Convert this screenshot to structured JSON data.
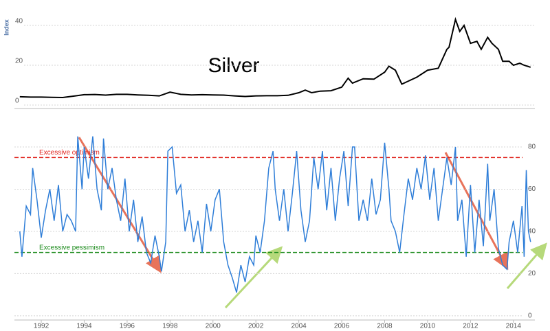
{
  "chart_data": [
    {
      "type": "line",
      "title": "Silver",
      "y_label": "Index",
      "x": [
        1991.0,
        1991.5,
        1992.0,
        1992.5,
        1993.0,
        1993.5,
        1994.0,
        1994.5,
        1995.0,
        1995.5,
        1996.0,
        1996.5,
        1997.0,
        1997.5,
        1998.0,
        1998.5,
        1999.0,
        1999.5,
        2000.0,
        2000.5,
        2001.0,
        2001.5,
        2002.0,
        2002.5,
        2003.0,
        2003.5,
        2004.0,
        2004.3,
        2004.6,
        2005.0,
        2005.5,
        2006.0,
        2006.3,
        2006.5,
        2007.0,
        2007.5,
        2008.0,
        2008.2,
        2008.5,
        2008.8,
        2009.0,
        2009.5,
        2010.0,
        2010.5,
        2010.9,
        2011.0,
        2011.3,
        2011.5,
        2011.7,
        2012.0,
        2012.3,
        2012.5,
        2012.8,
        2013.0,
        2013.3,
        2013.5,
        2013.8,
        2014.0,
        2014.3,
        2014.5,
        2014.8
      ],
      "series": [
        {
          "color": "#000000",
          "values": [
            4.2,
            4.0,
            4.0,
            3.9,
            3.8,
            4.5,
            5.2,
            5.3,
            5.0,
            5.4,
            5.4,
            5.1,
            4.9,
            4.6,
            6.5,
            5.4,
            5.1,
            5.2,
            5.1,
            5.0,
            4.6,
            4.3,
            4.6,
            4.7,
            4.7,
            4.9,
            6.2,
            7.5,
            6.2,
            7.0,
            7.2,
            9.0,
            13.5,
            11,
            13.2,
            13.0,
            16.5,
            19.5,
            17.5,
            10.5,
            11.5,
            14,
            17.5,
            18.5,
            28,
            29,
            43,
            37,
            40,
            31,
            32,
            28,
            34,
            31,
            28,
            22,
            22,
            20,
            21,
            20,
            19
          ]
        }
      ],
      "xlim": [
        1990.75,
        2015
      ],
      "ylim": [
        0,
        50
      ],
      "yticks": [
        0,
        20,
        40
      ],
      "grid": true
    },
    {
      "type": "line",
      "x": [
        1991.0,
        1991.1,
        1991.3,
        1991.5,
        1991.6,
        1991.8,
        1992.0,
        1992.2,
        1992.4,
        1992.6,
        1992.8,
        1993.0,
        1993.2,
        1993.4,
        1993.6,
        1993.7,
        1993.9,
        1994.0,
        1994.2,
        1994.4,
        1994.6,
        1994.8,
        1994.9,
        1995.1,
        1995.3,
        1995.5,
        1995.7,
        1995.9,
        1996.1,
        1996.3,
        1996.5,
        1996.7,
        1996.9,
        1997.1,
        1997.3,
        1997.5,
        1997.6,
        1997.8,
        1997.9,
        1998.1,
        1998.3,
        1998.5,
        1998.7,
        1998.9,
        1999.1,
        1999.3,
        1999.5,
        1999.7,
        1999.9,
        2000.1,
        2000.3,
        2000.5,
        2000.7,
        2000.9,
        2001.1,
        2001.3,
        2001.5,
        2001.7,
        2001.9,
        2002.0,
        2002.2,
        2002.4,
        2002.6,
        2002.8,
        2002.9,
        2003.1,
        2003.3,
        2003.5,
        2003.7,
        2003.9,
        2004.1,
        2004.3,
        2004.5,
        2004.7,
        2004.9,
        2005.1,
        2005.3,
        2005.5,
        2005.7,
        2005.9,
        2006.1,
        2006.3,
        2006.5,
        2006.6,
        2006.8,
        2007.0,
        2007.2,
        2007.4,
        2007.6,
        2007.8,
        2008.0,
        2008.2,
        2008.3,
        2008.5,
        2008.7,
        2008.9,
        2009.1,
        2009.3,
        2009.5,
        2009.7,
        2009.9,
        2010.1,
        2010.3,
        2010.5,
        2010.7,
        2010.9,
        2011.1,
        2011.3,
        2011.4,
        2011.6,
        2011.8,
        2012.0,
        2012.2,
        2012.4,
        2012.6,
        2012.8,
        2012.9,
        2013.1,
        2013.3,
        2013.5,
        2013.7,
        2013.8,
        2014.0,
        2014.2,
        2014.4,
        2014.5,
        2014.6,
        2014.7,
        2014.8
      ],
      "series": [
        {
          "color": "#2f7ed8",
          "values": [
            40,
            28,
            52,
            48,
            70,
            55,
            37,
            50,
            60,
            45,
            62,
            40,
            48,
            45,
            40,
            85,
            60,
            80,
            65,
            85,
            60,
            50,
            84,
            60,
            70,
            55,
            45,
            65,
            40,
            55,
            35,
            47,
            30,
            25,
            38,
            28,
            21,
            35,
            78,
            80,
            58,
            62,
            40,
            50,
            35,
            45,
            30,
            53,
            40,
            55,
            60,
            35,
            24,
            18,
            11,
            24,
            16,
            28,
            24,
            38,
            30,
            45,
            70,
            78,
            60,
            45,
            60,
            40,
            58,
            78,
            50,
            35,
            45,
            75,
            60,
            78,
            50,
            70,
            45,
            65,
            78,
            52,
            80,
            80,
            45,
            55,
            45,
            65,
            48,
            55,
            82,
            60,
            45,
            40,
            30,
            48,
            65,
            55,
            70,
            60,
            76,
            55,
            70,
            45,
            60,
            75,
            62,
            80,
            45,
            55,
            28,
            62,
            30,
            55,
            33,
            72,
            45,
            60,
            32,
            24,
            22,
            35,
            45,
            30,
            52,
            28,
            69,
            40,
            35
          ]
        }
      ],
      "hlines": [
        {
          "value": 75,
          "label": "Excessive optimism",
          "color": "#e0201a"
        },
        {
          "value": 30,
          "label": "Excessive pessimism",
          "color": "#1a8a1a"
        }
      ],
      "xlim": [
        1990.75,
        2015
      ],
      "ylim": [
        -2,
        85
      ],
      "yticks": [
        0,
        20,
        40,
        60,
        80
      ],
      "xticks": [
        1992,
        1994,
        1996,
        1998,
        2000,
        2002,
        2004,
        2006,
        2008,
        2010,
        2012,
        2014
      ],
      "grid": true
    }
  ]
}
